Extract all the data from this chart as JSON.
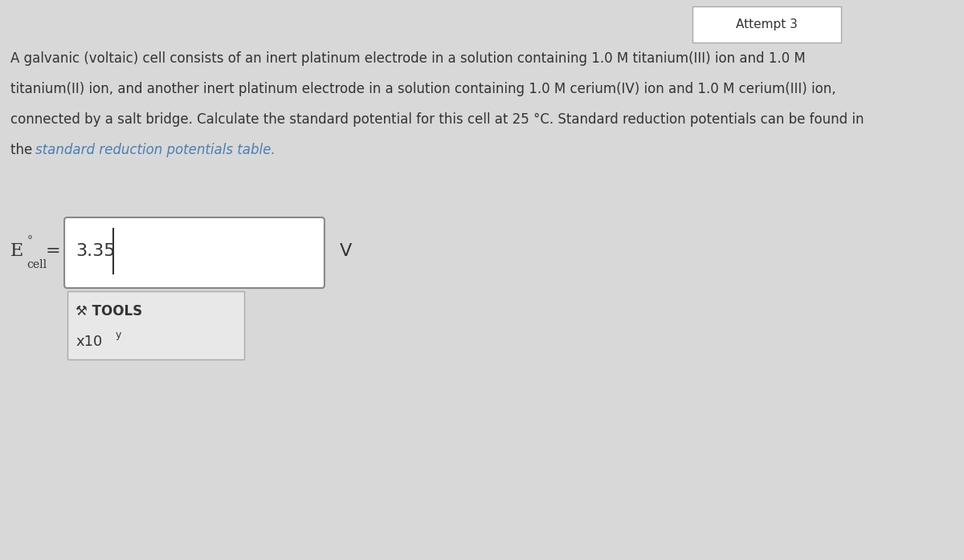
{
  "background_color": "#d8d8d8",
  "page_bg_color": "#e8e8e8",
  "title_text_line1": "A galvanic (voltaic) cell consists of an inert platinum electrode in a solution containing 1.0 M titanium(III) ion and 1.0 M",
  "title_text_line2": "titanium(II) ion, and another inert platinum electrode in a solution containing 1.0 M cerium(IV) ion and 1.0 M cerium(III) ion,",
  "title_text_line3": "connected by a salt bridge. Calculate the standard potential for this cell at 25 °C. Standard reduction potentials can be found in",
  "title_text_line4": "the standard reduction potentials table.",
  "label_E": "E",
  "label_cell_sup": "°",
  "label_cell_sub": "cell",
  "equals": "=",
  "input_value": "3.35",
  "unit": "V",
  "tools_label": "⚒ TOOLS",
  "x10_label": "x10",
  "x10_sup": "y",
  "attempt_label": "Attempt 3",
  "text_color": "#333333",
  "link_color": "#4a7fb5",
  "input_box_color": "#ffffff",
  "input_box_border": "#888888",
  "tools_box_color": "#e8e8e8",
  "tools_box_border": "#aaaaaa",
  "attempt_box_color": "#ffffff",
  "attempt_box_border": "#aaaaaa"
}
